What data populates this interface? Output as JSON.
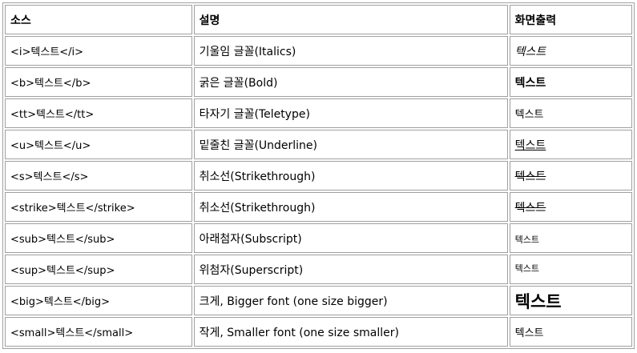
{
  "headers": [
    "소스",
    "설명",
    "화면출력"
  ],
  "rows": [
    {
      "source": "<i>텍스트</i>",
      "desc": "기울임 글꼴(Italics)",
      "output": "텍스트",
      "style": "i"
    },
    {
      "source": "<b>텍스트</b>",
      "desc": "굵은 글꼴(Bold)",
      "output": "텍스트",
      "style": "b"
    },
    {
      "source": "<tt>텍스트</tt>",
      "desc": "타자기 글꼴(Teletype)",
      "output": "텍스트",
      "style": "tt"
    },
    {
      "source": "<u>텍스트</u>",
      "desc": "밑줄친 글꼴(Underline)",
      "output": "텍스트",
      "style": "u"
    },
    {
      "source": "<s>텍스트</s>",
      "desc": "취소선(Strikethrough)",
      "output": "텍스트",
      "style": "s"
    },
    {
      "source": "<strike>텍스트</strike>",
      "desc": "취소선(Strikethrough)",
      "output": "텍스트",
      "style": "strike"
    },
    {
      "source": "<sub>텍스트</sub>",
      "desc": "아래첨자(Subscript)",
      "output": "텍스트",
      "style": "sub"
    },
    {
      "source": "<sup>텍스트</sup>",
      "desc": "위첨자(Superscript)",
      "output": "텍스트",
      "style": "sup"
    },
    {
      "source": "<big>텍스트</big>",
      "desc": "크게, Bigger font (one size bigger)",
      "output": "텍스트",
      "style": "big"
    },
    {
      "source": "<small>텍스트</small>",
      "desc": "작게, Smaller font (one size smaller)",
      "output": "텍스트",
      "style": "small"
    }
  ]
}
